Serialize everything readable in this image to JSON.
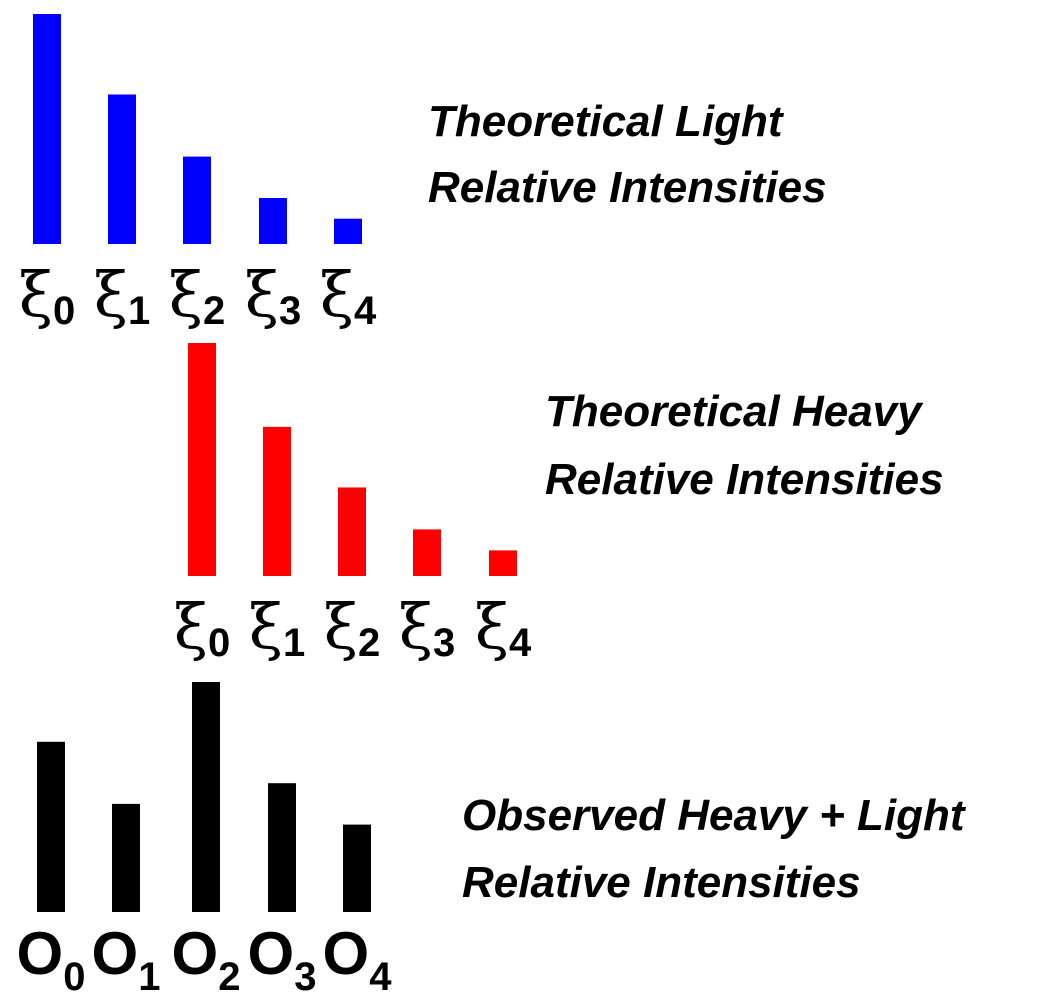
{
  "chart_data": [
    {
      "type": "bar",
      "caption": [
        "Theoretical Light",
        "Relative Intensities"
      ],
      "color": "#0000ff",
      "tick_labels": [
        {
          "symbol": "ξ",
          "subscript": "0"
        },
        {
          "symbol": "ξ",
          "subscript": "1"
        },
        {
          "symbol": "ξ",
          "subscript": "2"
        },
        {
          "symbol": "ξ",
          "subscript": "3"
        },
        {
          "symbol": "ξ",
          "subscript": "4"
        }
      ],
      "values": [
        1.0,
        0.65,
        0.38,
        0.2,
        0.11
      ],
      "ylim": [
        0,
        1
      ]
    },
    {
      "type": "bar",
      "caption": [
        "Theoretical Heavy",
        "Relative Intensities"
      ],
      "color": "#ff0000",
      "tick_labels": [
        {
          "symbol": "ξ",
          "subscript": "0"
        },
        {
          "symbol": "ξ",
          "subscript": "1"
        },
        {
          "symbol": "ξ",
          "subscript": "2"
        },
        {
          "symbol": "ξ",
          "subscript": "3"
        },
        {
          "symbol": "ξ",
          "subscript": "4"
        }
      ],
      "values": [
        1.0,
        0.64,
        0.38,
        0.2,
        0.11
      ],
      "ylim": [
        0,
        1
      ]
    },
    {
      "type": "bar",
      "caption": [
        "Observed  Heavy + Light",
        "Relative Intensities"
      ],
      "color": "#000000",
      "tick_labels": [
        {
          "symbol": "O",
          "subscript": "0"
        },
        {
          "symbol": "O",
          "subscript": "1"
        },
        {
          "symbol": "O",
          "subscript": "2"
        },
        {
          "symbol": "O",
          "subscript": "3"
        },
        {
          "symbol": "O",
          "subscript": "4"
        }
      ],
      "values": [
        0.74,
        0.47,
        1.0,
        0.56,
        0.38
      ],
      "ylim": [
        0,
        1
      ]
    }
  ]
}
